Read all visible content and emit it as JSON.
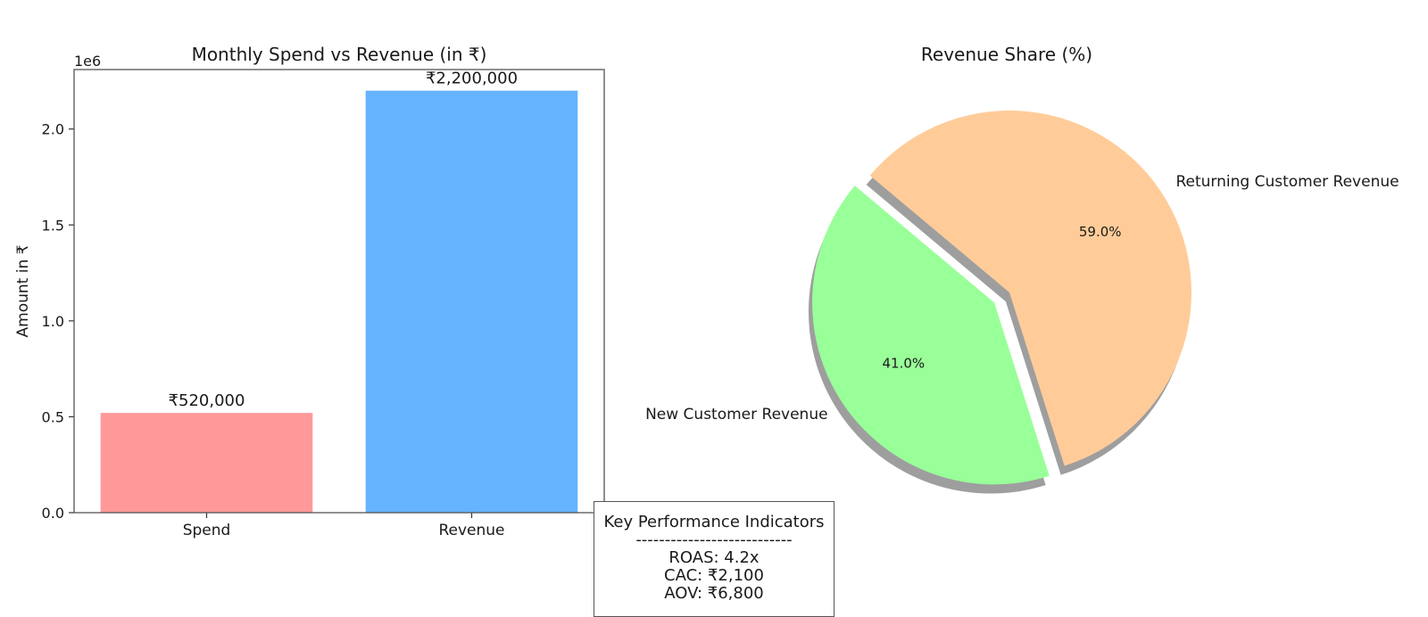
{
  "chart_data": [
    {
      "type": "bar",
      "title": "Monthly Spend vs Revenue (in ₹)",
      "xlabel": "",
      "ylabel": "Amount in ₹",
      "y_offset_label": "1e6",
      "categories": [
        "Spend",
        "Revenue"
      ],
      "values": [
        520000,
        2200000
      ],
      "data_labels": [
        "₹520,000",
        "₹2,200,000"
      ],
      "colors": [
        "#ff9999",
        "#66b3ff"
      ],
      "ylim": [
        0,
        2310000
      ],
      "y_ticks": [
        0,
        500000,
        1000000,
        1500000,
        2000000
      ],
      "y_tick_labels": [
        "0.0",
        "0.5",
        "1.0",
        "1.5",
        "2.0"
      ],
      "grid": false
    },
    {
      "type": "pie",
      "title": "Revenue Share (%)",
      "labels": [
        "New Customer Revenue",
        "Returning Customer Revenue"
      ],
      "values": [
        41.0,
        59.0
      ],
      "pct_labels": [
        "41.0%",
        "59.0%"
      ],
      "colors": [
        "#99ff99",
        "#ffcc99"
      ],
      "exploded": "New Customer Revenue",
      "shadow": true
    }
  ],
  "kpi": {
    "title": "Key Performance Indicators",
    "divider": "---------------------------",
    "lines": [
      "ROAS: 4.2x",
      "CAC: ₹2,100",
      "AOV: ₹6,800"
    ]
  }
}
